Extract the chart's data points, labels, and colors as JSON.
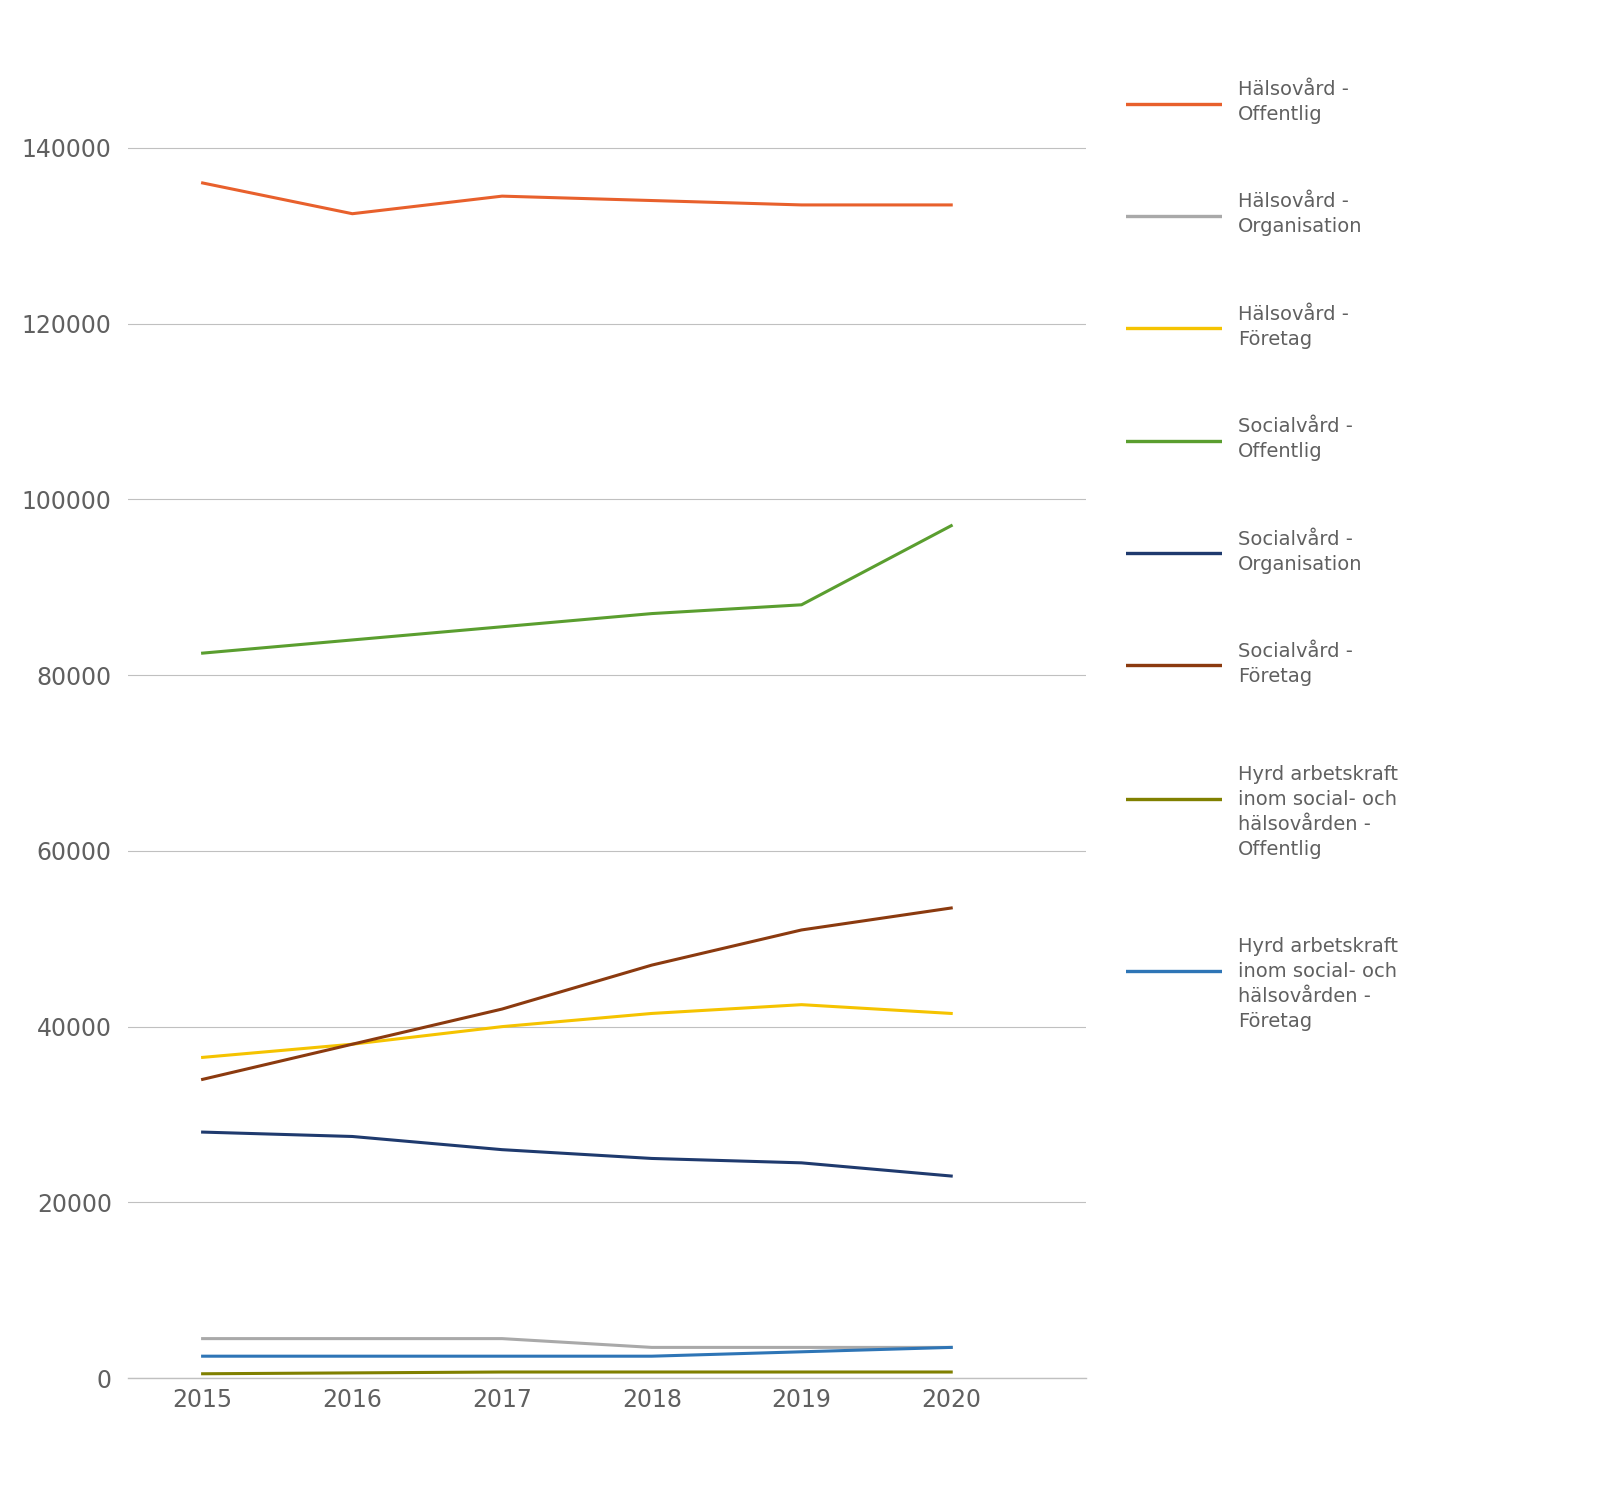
{
  "years": [
    2015,
    2016,
    2017,
    2018,
    2019,
    2020
  ],
  "series": [
    {
      "label": "Hälsovård -\nOffentlig",
      "color": "#E8602C",
      "values": [
        136000,
        132500,
        134500,
        134000,
        133500,
        133500
      ]
    },
    {
      "label": "Hälsovård -\nOrganisation",
      "color": "#A9A9A9",
      "values": [
        4500,
        4500,
        4500,
        3500,
        3500,
        3500
      ]
    },
    {
      "label": "Hälsovård -\nFöretag",
      "color": "#F5C300",
      "values": [
        36500,
        38000,
        40000,
        41500,
        42500,
        41500
      ]
    },
    {
      "label": "Socialvård -\nOffentlig",
      "color": "#5A9E2F",
      "values": [
        82500,
        84000,
        85500,
        87000,
        88000,
        97000
      ]
    },
    {
      "label": "Socialvård -\nOrganisation",
      "color": "#1F3A6E",
      "values": [
        28000,
        27500,
        26000,
        25000,
        24500,
        23000
      ]
    },
    {
      "label": "Socialvård -\nFöretag",
      "color": "#8B3A0F",
      "values": [
        34000,
        38000,
        42000,
        47000,
        51000,
        53500
      ]
    },
    {
      "label": "Hyrd arbetskraft\ninom social- och\nhälsovården -\nOffentlig",
      "color": "#808000",
      "values": [
        500,
        600,
        700,
        700,
        700,
        700
      ]
    },
    {
      "label": "Hyrd arbetskraft\ninom social- och\nhälsovården -\nFöretag",
      "color": "#2E75B6",
      "values": [
        2500,
        2500,
        2500,
        2500,
        3000,
        3500
      ]
    }
  ],
  "ylim": [
    0,
    150000
  ],
  "yticks": [
    0,
    20000,
    40000,
    60000,
    80000,
    100000,
    120000,
    140000
  ],
  "background_color": "#FFFFFF",
  "grid_color": "#C0C0C0",
  "tick_color": "#606060",
  "linewidth": 2.2
}
